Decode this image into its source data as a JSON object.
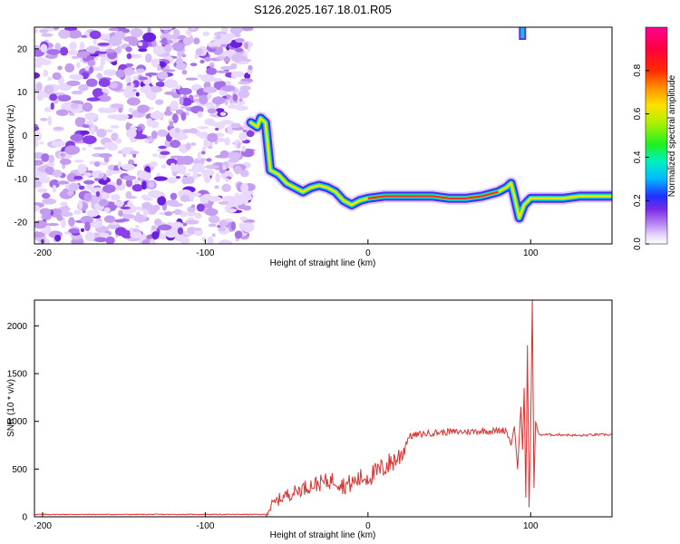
{
  "title": "S126.2025.167.18.01.R05",
  "chart_data": [
    {
      "type": "heatmap",
      "xlabel": "Height of straight line (km)",
      "ylabel": "Frequency (Hz)",
      "xlim": [
        -205,
        150
      ],
      "ylim": [
        -25,
        25
      ],
      "xticks": [
        -200,
        -100,
        0,
        100
      ],
      "xtick_labels": [
        "-200",
        "-100",
        "0",
        "100"
      ],
      "yticks": [
        -20,
        -10,
        0,
        10,
        20
      ],
      "ytick_labels": [
        "-20",
        "-10",
        "0",
        "10",
        "20"
      ],
      "colorbar": {
        "label": "Normalized spectral amplitude",
        "range": [
          0,
          1
        ],
        "ticks": [
          0.0,
          0.2,
          0.4,
          0.6,
          0.8
        ],
        "tick_labels": [
          "0.0",
          "0.2",
          "0.4",
          "0.6",
          "0.8"
        ]
      },
      "noise_region": {
        "x": [
          -205,
          -72
        ],
        "y": [
          -25,
          25
        ],
        "amplitude": 0.1
      },
      "signal_track": [
        {
          "x": -72,
          "y": 3
        },
        {
          "x": -68,
          "y": 2
        },
        {
          "x": -66,
          "y": 4
        },
        {
          "x": -63,
          "y": 3
        },
        {
          "x": -60,
          "y": -8
        },
        {
          "x": -55,
          "y": -9
        },
        {
          "x": -50,
          "y": -11
        },
        {
          "x": -45,
          "y": -12
        },
        {
          "x": -40,
          "y": -13
        },
        {
          "x": -35,
          "y": -12
        },
        {
          "x": -30,
          "y": -11.5
        },
        {
          "x": -25,
          "y": -12
        },
        {
          "x": -20,
          "y": -13
        },
        {
          "x": -15,
          "y": -15
        },
        {
          "x": -10,
          "y": -16
        },
        {
          "x": -5,
          "y": -15
        },
        {
          "x": 0,
          "y": -14.5
        },
        {
          "x": 10,
          "y": -14
        },
        {
          "x": 20,
          "y": -14
        },
        {
          "x": 30,
          "y": -14
        },
        {
          "x": 40,
          "y": -14
        },
        {
          "x": 50,
          "y": -14.5
        },
        {
          "x": 60,
          "y": -14.5
        },
        {
          "x": 70,
          "y": -14
        },
        {
          "x": 80,
          "y": -13
        },
        {
          "x": 85,
          "y": -12
        },
        {
          "x": 88,
          "y": -11
        },
        {
          "x": 90,
          "y": -14
        },
        {
          "x": 93,
          "y": -19
        },
        {
          "x": 96,
          "y": -16
        },
        {
          "x": 100,
          "y": -14.5
        },
        {
          "x": 110,
          "y": -14.5
        },
        {
          "x": 120,
          "y": -14.5
        },
        {
          "x": 130,
          "y": -14
        },
        {
          "x": 140,
          "y": -14
        },
        {
          "x": 150,
          "y": -14
        }
      ]
    },
    {
      "type": "line",
      "xlabel": "Height of straight line (km)",
      "ylabel": "SNR (10 * v/v)",
      "xlim": [
        -205,
        150
      ],
      "ylim": [
        0,
        2270
      ],
      "xticks": [
        -200,
        -100,
        0,
        100
      ],
      "xtick_labels": [
        "-200",
        "-100",
        "0",
        "100"
      ],
      "yticks": [
        0,
        500,
        1000,
        1500,
        2000
      ],
      "ytick_labels": [
        "0",
        "500",
        "1000",
        "1500",
        "2000"
      ],
      "series": [
        {
          "color": "#e03030",
          "x": [
            -205,
            -180,
            -150,
            -120,
            -100,
            -80,
            -63,
            -60,
            -55,
            -50,
            -45,
            -40,
            -35,
            -30,
            -25,
            -20,
            -15,
            -10,
            -5,
            0,
            5,
            10,
            15,
            20,
            23,
            25,
            30,
            40,
            50,
            60,
            70,
            80,
            85,
            88,
            90,
            92,
            94,
            95,
            96,
            97,
            98,
            99,
            100,
            101,
            102,
            103,
            105,
            110,
            120,
            130,
            140,
            150
          ],
          "y": [
            25,
            25,
            25,
            25,
            25,
            25,
            25,
            100,
            180,
            230,
            260,
            300,
            330,
            350,
            370,
            390,
            330,
            350,
            400,
            420,
            460,
            520,
            580,
            640,
            750,
            840,
            860,
            880,
            890,
            890,
            900,
            900,
            910,
            750,
            950,
            500,
            1150,
            700,
            1350,
            200,
            1800,
            100,
            900,
            2270,
            300,
            1000,
            860,
            860,
            860,
            850,
            860,
            860
          ]
        }
      ]
    }
  ]
}
